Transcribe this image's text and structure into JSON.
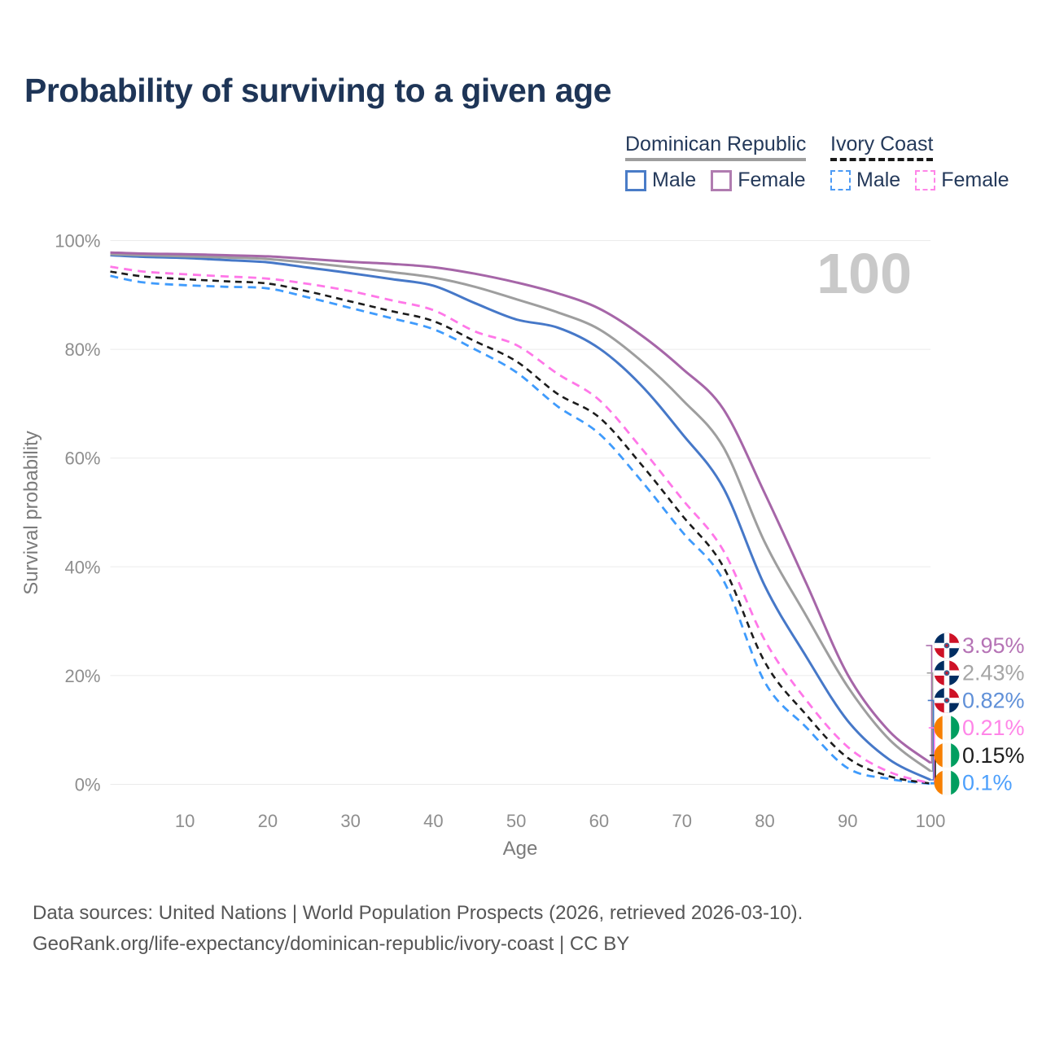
{
  "title": "Probability of surviving to a given age",
  "legend": {
    "groups": [
      {
        "label": "Dominican Republic",
        "line_style": "solid",
        "underline_color": "#9e9e9e",
        "items": [
          {
            "label": "Male",
            "color": "#4a7cc7"
          },
          {
            "label": "Female",
            "color": "#b07cb0"
          }
        ]
      },
      {
        "label": "Ivory Coast",
        "line_style": "dashed",
        "underline_color": "#1a1a1a",
        "items": [
          {
            "label": "Male",
            "color": "#4d9bf5"
          },
          {
            "label": "Female",
            "color": "#ff85e8"
          }
        ]
      }
    ]
  },
  "chart_data": {
    "type": "line",
    "title": "Probability of surviving to a given age",
    "xlabel": "Age",
    "ylabel": "Survival probability",
    "xlim": [
      1,
      100
    ],
    "ylim": [
      0,
      100
    ],
    "grid": "horizontal",
    "watermark": "100",
    "x_ticks": [
      10,
      20,
      30,
      40,
      50,
      60,
      70,
      80,
      90,
      100
    ],
    "y_ticks": [
      {
        "value": 0,
        "label": "0%"
      },
      {
        "value": 20,
        "label": "20%"
      },
      {
        "value": 40,
        "label": "40%"
      },
      {
        "value": 60,
        "label": "60%"
      },
      {
        "value": 80,
        "label": "80%"
      },
      {
        "value": 100,
        "label": "100%"
      }
    ],
    "x": [
      1,
      5,
      10,
      15,
      20,
      25,
      30,
      35,
      40,
      45,
      50,
      55,
      60,
      65,
      70,
      75,
      80,
      85,
      90,
      95,
      100
    ],
    "series": [
      {
        "id": "ic-male",
        "name": "Ivory Coast Male",
        "country": "Ivory Coast",
        "flag": "ci",
        "color": "#3f9bfc",
        "label_color": "#4da0fc",
        "dash": "10 7",
        "width": 2.8,
        "end_label": "0.1%",
        "values": [
          93.5,
          92.3,
          91.8,
          91.5,
          91.2,
          89.5,
          87.6,
          85.7,
          83.7,
          80.0,
          75.8,
          69.5,
          64.5,
          56.0,
          46.5,
          37.5,
          18.8,
          10.5,
          3.0,
          1.0,
          0.1
        ]
      },
      {
        "id": "ic-total",
        "name": "Ivory Coast Both sexes",
        "country": "Ivory Coast",
        "flag": "ci",
        "color": "#1c1c1c",
        "label_color": "#1d1d1d",
        "dash": "8 6",
        "width": 2.6,
        "end_label": "0.15%",
        "values": [
          94.3,
          93.4,
          92.9,
          92.5,
          92.1,
          90.6,
          88.8,
          87.0,
          85.2,
          81.5,
          77.8,
          71.8,
          67.5,
          59.0,
          49.5,
          40.0,
          22.5,
          12.8,
          4.9,
          1.5,
          0.15
        ]
      },
      {
        "id": "ic-female",
        "name": "Ivory Coast Female",
        "country": "Ivory Coast",
        "flag": "ci",
        "color": "#ff77e8",
        "label_color": "#ff85e8",
        "dash": "10 7",
        "width": 2.8,
        "end_label": "0.21%",
        "values": [
          95.2,
          94.3,
          93.8,
          93.4,
          93.0,
          92.0,
          90.7,
          89.0,
          87.2,
          83.3,
          80.8,
          75.5,
          70.7,
          62.0,
          52.5,
          43.0,
          26.5,
          15.5,
          6.9,
          2.3,
          0.21
        ]
      },
      {
        "id": "dr-male",
        "name": "Dominican Republic Male",
        "country": "Dominican Republic",
        "flag": "do",
        "color": "#4678c8",
        "label_color": "#6090d8",
        "dash": "",
        "width": 3,
        "end_label": "0.82%",
        "values": [
          97.3,
          97.0,
          96.8,
          96.4,
          96.0,
          95.0,
          94.0,
          92.9,
          91.7,
          88.5,
          85.5,
          84.0,
          80.2,
          73.5,
          64.5,
          54.5,
          36.5,
          23.5,
          11.7,
          4.6,
          0.82
        ]
      },
      {
        "id": "dr-total",
        "name": "Dominican Republic Both sexes",
        "country": "Dominican Republic",
        "flag": "do",
        "color": "#9e9e9e",
        "label_color": "#a6a6a6",
        "dash": "",
        "width": 3,
        "end_label": "2.43%",
        "values": [
          97.5,
          97.3,
          97.1,
          96.9,
          96.6,
          95.9,
          95.1,
          94.2,
          93.2,
          91.5,
          89.2,
          86.8,
          83.7,
          78.0,
          70.8,
          62.0,
          44.5,
          31.0,
          18.0,
          8.3,
          2.43
        ]
      },
      {
        "id": "dr-female",
        "name": "Dominican Republic Female",
        "country": "Dominican Republic",
        "flag": "do",
        "color": "#a666a8",
        "label_color": "#b573b5",
        "dash": "",
        "width": 3,
        "end_label": "3.95%",
        "values": [
          97.8,
          97.6,
          97.5,
          97.3,
          97.1,
          96.6,
          96.1,
          95.7,
          95.1,
          93.9,
          92.3,
          90.3,
          87.5,
          82.7,
          76.5,
          69.0,
          53.5,
          37.0,
          20.2,
          9.8,
          3.95
        ]
      }
    ]
  },
  "end_labels": [
    {
      "series": "dr-female",
      "value": "3.95%"
    },
    {
      "series": "dr-total",
      "value": "2.43%"
    },
    {
      "series": "dr-male",
      "value": "0.82%"
    },
    {
      "series": "ic-female",
      "value": "0.21%"
    },
    {
      "series": "ic-total",
      "value": "0.15%"
    },
    {
      "series": "ic-male",
      "value": "0.1%"
    }
  ],
  "footer": {
    "line1": "Data sources: United Nations | World Population Prospects (2026, retrieved 2026-03-10).",
    "line2": "GeoRank.org/life-expectancy/dominican-republic/ivory-coast | CC BY"
  }
}
